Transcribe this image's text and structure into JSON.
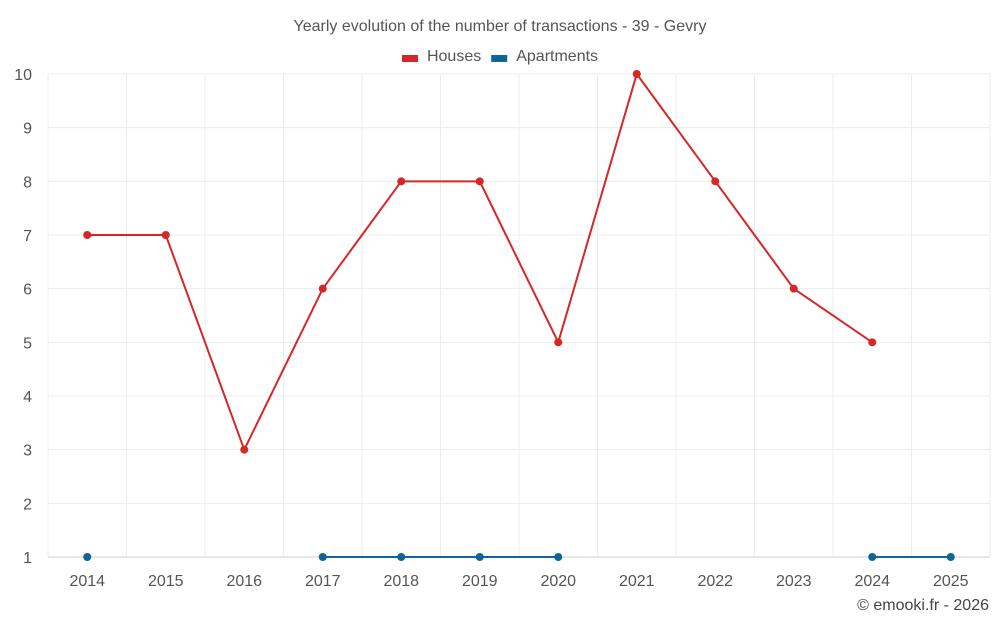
{
  "chart_data": {
    "type": "line",
    "title": "Yearly evolution of the number of transactions - 39 - Gevry",
    "xlabel": "",
    "ylabel": "",
    "categories": [
      "2014",
      "2015",
      "2016",
      "2017",
      "2018",
      "2019",
      "2020",
      "2021",
      "2022",
      "2023",
      "2024",
      "2025"
    ],
    "ylim": [
      1,
      10
    ],
    "yticks": [
      "1",
      "2",
      "3",
      "4",
      "5",
      "6",
      "7",
      "8",
      "9",
      "10"
    ],
    "grid": true,
    "legend_position": "top-center",
    "series": [
      {
        "name": "Houses",
        "color": "#d62728",
        "values": [
          7,
          7,
          3,
          6,
          8,
          8,
          5,
          10,
          8,
          6,
          5,
          null
        ]
      },
      {
        "name": "Apartments",
        "color": "#0e6696",
        "values": [
          1,
          null,
          null,
          1,
          1,
          1,
          1,
          null,
          null,
          null,
          1,
          1
        ]
      }
    ]
  },
  "credit": "© emooki.fr - 2026"
}
